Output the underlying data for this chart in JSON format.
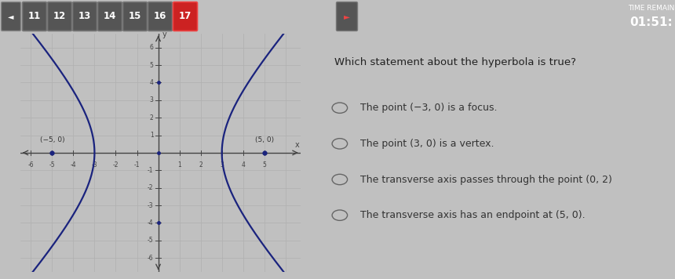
{
  "bg_color_top": "#3a3a3a",
  "bg_color_bottom": "#c0c0c0",
  "graph_bg": "#e0e0e0",
  "nav_buttons": [
    "11",
    "12",
    "13",
    "14",
    "15",
    "16",
    "17"
  ],
  "active_button": "17",
  "time_label": "TIME REMAIN",
  "time_value": "01:51:",
  "question": "Which statement about the hyperbola is true?",
  "options": [
    "The point (−3, 0) is a focus.",
    "The point (3, 0) is a vertex.",
    "The transverse axis passes through the point (0, 2)",
    "The transverse axis has an endpoint at (5, 0)."
  ],
  "focus_points": [
    [
      -5,
      0
    ],
    [
      5,
      0
    ]
  ],
  "focus_labels": [
    "(−5, 0)",
    "(5, 0)"
  ],
  "hyperbola_a": 3,
  "hyperbola_b": 4,
  "hyperbola_color": "#1a237e",
  "dot_color": "#1a237e",
  "axis_color": "#444444",
  "grid_color": "#b0b0b0",
  "x_ticks": [
    -6,
    -5,
    -4,
    -3,
    -2,
    -1,
    1,
    2,
    3,
    4,
    5
  ],
  "y_ticks": [
    -6,
    -5,
    -4,
    -3,
    -2,
    -1,
    1,
    2,
    3,
    4,
    5,
    6
  ]
}
